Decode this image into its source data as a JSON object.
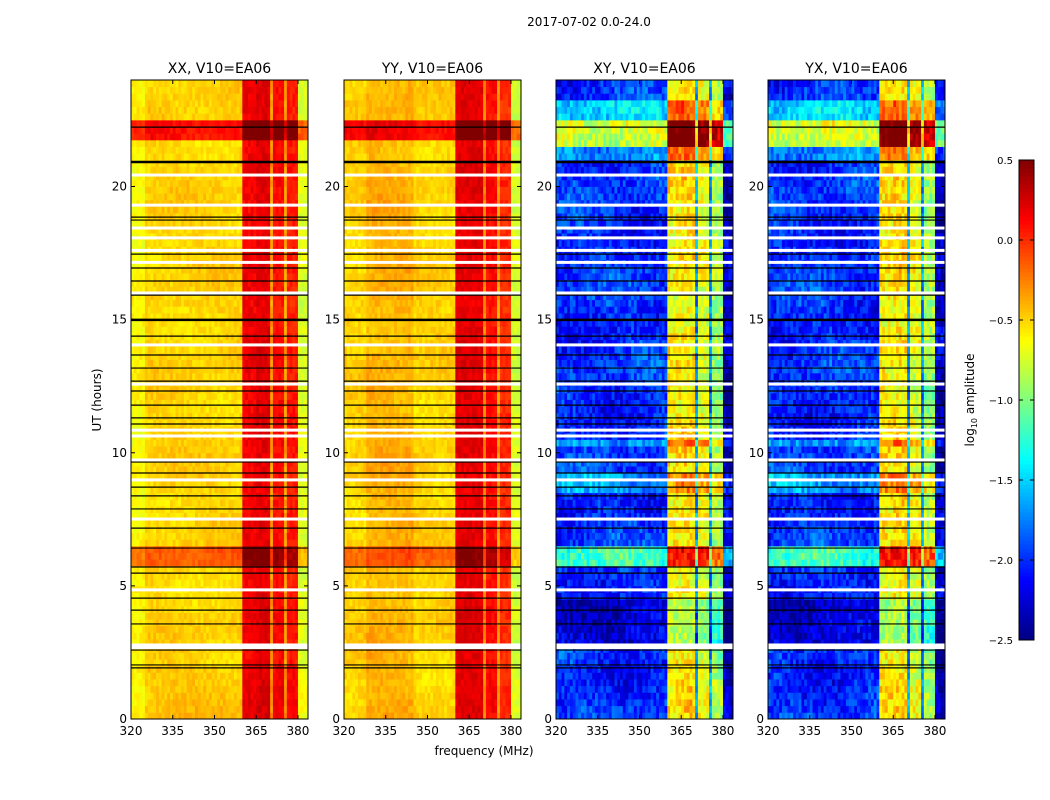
{
  "chart_data": {
    "type": "heatmap",
    "suptitle": "2017-07-02 0.0-24.0",
    "xlabel": "frequency (MHz)",
    "ylabel": "UT (hours)",
    "xlim": [
      320,
      383.6
    ],
    "ylim": [
      0,
      24
    ],
    "xticks": [
      320,
      335,
      350,
      365,
      380
    ],
    "yticks": [
      0,
      5,
      10,
      15,
      20
    ],
    "colorbar": {
      "label_main": "log",
      "label_sub": "10",
      "label_rest": " amplitude",
      "colormap": "jet",
      "range": [
        -2.5,
        0.5
      ],
      "ticks": [
        "0.5",
        "0.0",
        "−0.5",
        "−1.0",
        "−1.5",
        "−2.0",
        "−2.5"
      ],
      "tick_values": [
        0.5,
        0.0,
        -0.5,
        -1.0,
        -1.5,
        -2.0,
        -2.5
      ]
    },
    "scan_boundaries_hours": [
      22.23,
      20.92,
      18.85,
      18.74,
      17.46,
      16.94,
      16.45,
      15.92,
      14.99,
      14.38,
      13.67,
      13.18,
      12.69,
      12.32,
      11.79,
      11.31,
      11.08,
      9.65,
      9.24,
      8.71,
      8.38,
      7.89,
      7.17,
      6.42,
      5.71,
      5.48,
      4.54,
      4.09,
      3.57,
      2.59,
      2.03,
      1.92
    ],
    "flagged_hours": [
      20.43,
      19.3,
      18.44,
      18.07,
      17.6,
      17.15,
      16.0,
      14.05,
      12.58,
      10.85,
      10.63,
      9.73,
      8.98,
      7.51,
      4.85,
      2.78,
      2.68
    ],
    "panels": [
      {
        "title": "XX, V10=EA06",
        "freq_profile": [
          [
            320,
            325,
            -0.62
          ],
          [
            325,
            360,
            -0.5
          ],
          [
            360,
            364.6,
            0.15
          ],
          [
            364.6,
            365.3,
            -0.35
          ],
          [
            365.3,
            369.6,
            0.2
          ],
          [
            369.6,
            370.7,
            -0.35
          ],
          [
            370.7,
            374.6,
            0.1
          ],
          [
            374.6,
            375.7,
            -0.35
          ],
          [
            375.7,
            379.6,
            0.05
          ],
          [
            379.6,
            383.6,
            -0.72
          ]
        ],
        "time_events": [
          [
            21.8,
            22.5,
            0.6
          ],
          [
            5.8,
            6.4,
            0.35
          ],
          [
            0,
            2,
            0.05
          ]
        ],
        "noise": 0.12
      },
      {
        "title": "YY, V10=EA06",
        "freq_profile": [
          [
            320,
            328,
            -0.5
          ],
          [
            328,
            345,
            -0.4
          ],
          [
            345,
            360,
            -0.5
          ],
          [
            360,
            364.6,
            0.2
          ],
          [
            364.6,
            365.3,
            -0.3
          ],
          [
            365.3,
            369.6,
            0.2
          ],
          [
            369.6,
            370.7,
            -0.3
          ],
          [
            370.7,
            374.6,
            0.1
          ],
          [
            374.6,
            375.7,
            -0.35
          ],
          [
            375.7,
            379.6,
            0.0
          ],
          [
            379.6,
            383.6,
            -0.75
          ]
        ],
        "time_events": [
          [
            21.8,
            22.5,
            0.6
          ],
          [
            5.8,
            6.4,
            0.3
          ]
        ],
        "noise": 0.12
      },
      {
        "title": "XY, V10=EA06",
        "freq_profile": [
          [
            320,
            360,
            -2.0
          ],
          [
            360,
            364.6,
            -0.6
          ],
          [
            364.6,
            365.3,
            -1.8
          ],
          [
            365.3,
            369.6,
            -0.55
          ],
          [
            369.6,
            370.7,
            -1.7
          ],
          [
            370.7,
            374.6,
            -0.7
          ],
          [
            374.6,
            375.7,
            -1.7
          ],
          [
            375.7,
            379.6,
            -0.9
          ],
          [
            379.6,
            383.6,
            -2.3
          ]
        ],
        "time_events": [
          [
            21.6,
            22.5,
            1.25
          ],
          [
            22.5,
            23.2,
            0.45
          ],
          [
            20.9,
            21.6,
            0.35
          ],
          [
            5.8,
            6.4,
            0.75
          ],
          [
            2.7,
            4.6,
            -0.3
          ],
          [
            8.5,
            9.2,
            0.35
          ],
          [
            10.2,
            10.6,
            0.3
          ]
        ],
        "noise": 0.35
      },
      {
        "title": "YX, V10=EA06",
        "freq_profile": [
          [
            320,
            360,
            -2.0
          ],
          [
            360,
            364.6,
            -0.6
          ],
          [
            364.6,
            365.3,
            -1.8
          ],
          [
            365.3,
            369.6,
            -0.55
          ],
          [
            369.6,
            370.7,
            -1.7
          ],
          [
            370.7,
            374.6,
            -0.7
          ],
          [
            374.6,
            375.7,
            -1.7
          ],
          [
            375.7,
            379.6,
            -0.9
          ],
          [
            379.6,
            383.6,
            -2.3
          ]
        ],
        "time_events": [
          [
            21.6,
            22.5,
            1.25
          ],
          [
            22.5,
            23.2,
            0.45
          ],
          [
            20.9,
            21.6,
            0.35
          ],
          [
            5.8,
            6.4,
            0.75
          ],
          [
            2.7,
            4.6,
            -0.3
          ],
          [
            8.5,
            9.2,
            0.35
          ],
          [
            10.2,
            10.6,
            0.3
          ]
        ],
        "noise": 0.35
      }
    ]
  }
}
